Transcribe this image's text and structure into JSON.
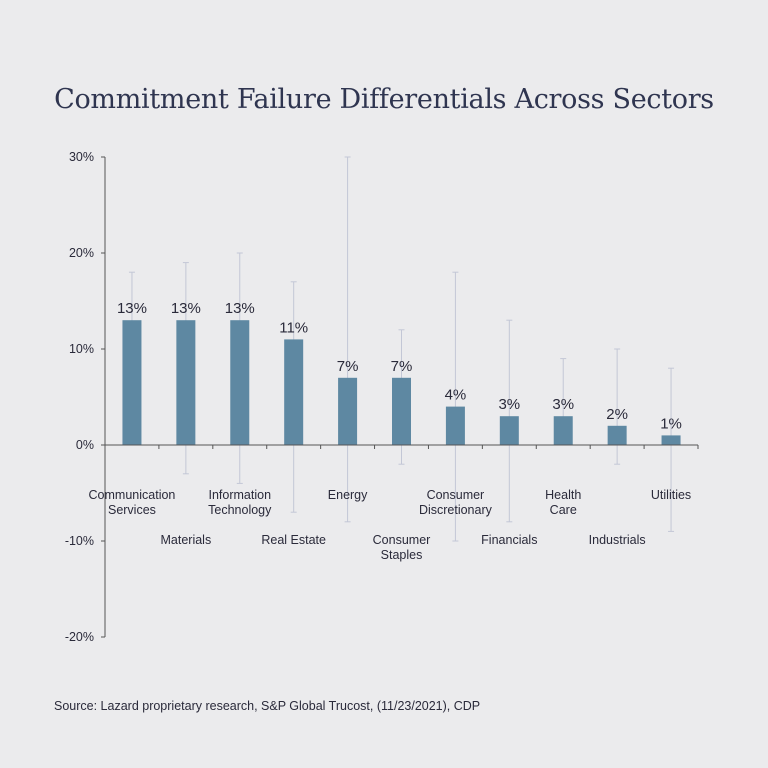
{
  "chart_data": {
    "type": "bar",
    "title": "Commitment Failure Differentials Across Sectors",
    "xlabel": "",
    "ylabel": "",
    "ylim": [
      -20,
      30
    ],
    "yticks": [
      "-20%",
      "-10%",
      "0%",
      "10%",
      "20%",
      "30%"
    ],
    "ytick_values": [
      -20,
      -10,
      0,
      10,
      20,
      30
    ],
    "categories": [
      [
        "Communication",
        "Services"
      ],
      [
        "Materials"
      ],
      [
        "Information",
        "Technology"
      ],
      [
        "Real Estate"
      ],
      [
        "Energy"
      ],
      [
        "Consumer",
        "Staples"
      ],
      [
        "Consumer",
        "Discretionary"
      ],
      [
        "Financials"
      ],
      [
        "Health",
        "Care"
      ],
      [
        "Industrials"
      ],
      [
        "Utilities"
      ]
    ],
    "values": [
      13,
      13,
      13,
      11,
      7,
      7,
      4,
      3,
      3,
      2,
      1
    ],
    "value_labels": [
      "13%",
      "13%",
      "13%",
      "11%",
      "7%",
      "7%",
      "4%",
      "3%",
      "3%",
      "2%",
      "1%"
    ],
    "error_low": [
      0,
      -3,
      -4,
      -7,
      -8,
      -2,
      -10,
      -8,
      0,
      -2,
      -9
    ],
    "error_high": [
      18,
      19,
      20,
      17,
      30,
      12,
      18,
      13,
      9,
      10,
      8
    ],
    "label_row": [
      "upper",
      "lower",
      "upper",
      "lower",
      "upper",
      "lower",
      "upper",
      "lower",
      "upper",
      "lower",
      "upper"
    ],
    "grid": false,
    "colors": {
      "bar": "#5e88a2",
      "error_bar": "#c3c7d6",
      "axis": "#555555"
    }
  },
  "source": "Source:  Lazard proprietary research, S&P Global Trucost, (11/23/2021), CDP"
}
